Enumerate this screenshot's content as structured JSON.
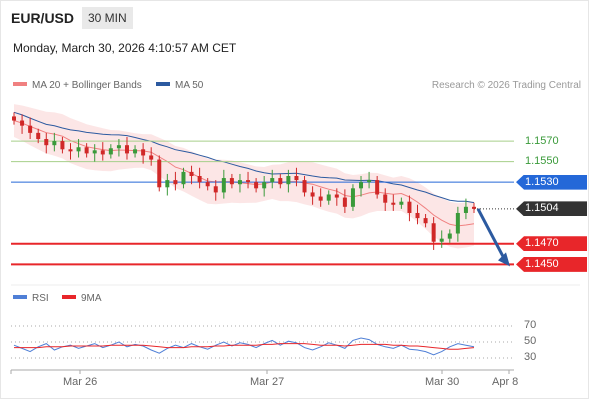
{
  "header": {
    "pair": "EUR/USD",
    "timeframe": "30 MIN"
  },
  "timestamp": "Monday, March 30, 2026 4:10:57 AM CET",
  "legend": [
    {
      "name": "MA 20 + Bollinger Bands",
      "color": "#f08080"
    },
    {
      "name": "MA 50",
      "color": "#2c5aa0"
    }
  ],
  "credit": "Research © 2026 Trading Central",
  "chart_data": [
    {
      "type": "candlestick",
      "y_range": [
        1.1425,
        1.161
      ],
      "x_labels": [
        "Mar 26",
        "Mar 27",
        "Mar 30",
        "Apr 8"
      ],
      "levels": [
        {
          "value": 1.157,
          "label": "1.1570",
          "kind": "resistance",
          "color": "#a6cf8a"
        },
        {
          "value": 1.155,
          "label": "1.1550",
          "kind": "resistance",
          "color": "#a6cf8a"
        },
        {
          "value": 1.153,
          "label": "1.1530",
          "kind": "pivot",
          "color": "#2468d8"
        },
        {
          "value": 1.1504,
          "label": "1.1504",
          "kind": "last",
          "color": "#333333"
        },
        {
          "value": 1.147,
          "label": "1.1470",
          "kind": "target",
          "color": "#e8262a"
        },
        {
          "value": 1.145,
          "label": "1.1450",
          "kind": "target",
          "color": "#e8262a"
        }
      ],
      "close_path": [
        1.159,
        1.1585,
        1.1578,
        1.1572,
        1.1566,
        1.157,
        1.1562,
        1.156,
        1.1564,
        1.1558,
        1.1561,
        1.1557,
        1.1563,
        1.1566,
        1.1558,
        1.1562,
        1.1556,
        1.1552,
        1.1525,
        1.1532,
        1.1528,
        1.154,
        1.1536,
        1.153,
        1.1526,
        1.152,
        1.1534,
        1.1528,
        1.1532,
        1.153,
        1.1524,
        1.153,
        1.1534,
        1.1528,
        1.1536,
        1.1532,
        1.152,
        1.1516,
        1.1512,
        1.1518,
        1.1515,
        1.1506,
        1.1524,
        1.153,
        1.1532,
        1.1518,
        1.151,
        1.1508,
        1.1511,
        1.15,
        1.1495,
        1.149,
        1.1472,
        1.1475,
        1.148,
        1.15,
        1.1506,
        1.1504
      ],
      "forecast": {
        "from": 1.1504,
        "to": 1.145
      }
    },
    {
      "type": "line",
      "title": "RSI",
      "y_range": [
        20,
        80
      ],
      "y_ticks": [
        70,
        50,
        30
      ],
      "series": [
        {
          "name": "RSI",
          "color": "#4f7fd6",
          "values": [
            46,
            42,
            38,
            44,
            48,
            40,
            44,
            46,
            42,
            45,
            48,
            43,
            46,
            50,
            44,
            47,
            45,
            40,
            36,
            42,
            46,
            43,
            48,
            44,
            41,
            46,
            50,
            45,
            49,
            47,
            43,
            48,
            52,
            46,
            51,
            49,
            43,
            40,
            44,
            49,
            46,
            42,
            52,
            55,
            53,
            47,
            44,
            42,
            46,
            41,
            40,
            38,
            34,
            38,
            44,
            48,
            46,
            44
          ]
        },
        {
          "name": "9MA",
          "color": "#e8262a",
          "values": [
            43,
            43,
            43,
            43,
            44,
            44,
            44,
            45,
            45,
            45,
            45,
            45,
            46,
            46,
            46,
            46,
            46,
            45,
            44,
            43,
            43,
            43,
            44,
            44,
            44,
            45,
            45,
            46,
            46,
            46,
            46,
            47,
            47,
            48,
            48,
            48,
            48,
            47,
            46,
            46,
            46,
            45,
            46,
            47,
            47,
            47,
            47,
            46,
            46,
            45,
            45,
            44,
            43,
            42,
            41,
            41,
            42,
            43
          ]
        }
      ]
    }
  ],
  "labels": {
    "rsi_legend_rsi": "RSI",
    "rsi_legend_ma": "9MA"
  }
}
